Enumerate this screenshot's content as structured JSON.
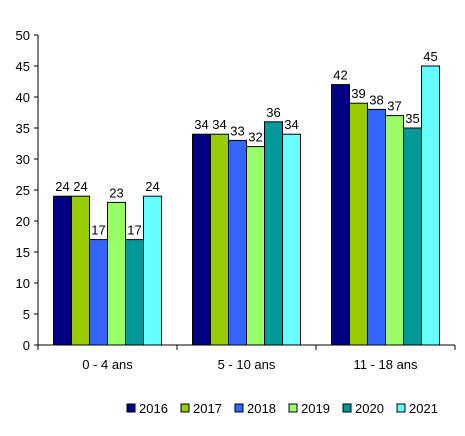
{
  "chart_data": {
    "type": "bar",
    "categories": [
      "0 - 4 ans",
      "5 - 10 ans",
      "11 - 18 ans"
    ],
    "series": [
      {
        "name": "2016",
        "color": "#000080",
        "values": [
          24,
          34,
          42
        ]
      },
      {
        "name": "2017",
        "color": "#99CC00",
        "values": [
          24,
          34,
          39
        ]
      },
      {
        "name": "2018",
        "color": "#3366FF",
        "values": [
          17,
          33,
          38
        ]
      },
      {
        "name": "2019",
        "color": "#99FF66",
        "values": [
          23,
          32,
          37
        ]
      },
      {
        "name": "2020",
        "color": "#009999",
        "values": [
          17,
          36,
          35
        ]
      },
      {
        "name": "2021",
        "color": "#66FFFF",
        "values": [
          24,
          34,
          45
        ]
      }
    ],
    "ylim": [
      0,
      50
    ],
    "yticks": [
      0,
      5,
      10,
      15,
      20,
      25,
      30,
      35,
      40,
      45,
      50
    ],
    "grid": false,
    "legend_position": "bottom-right",
    "data_labels": true
  }
}
